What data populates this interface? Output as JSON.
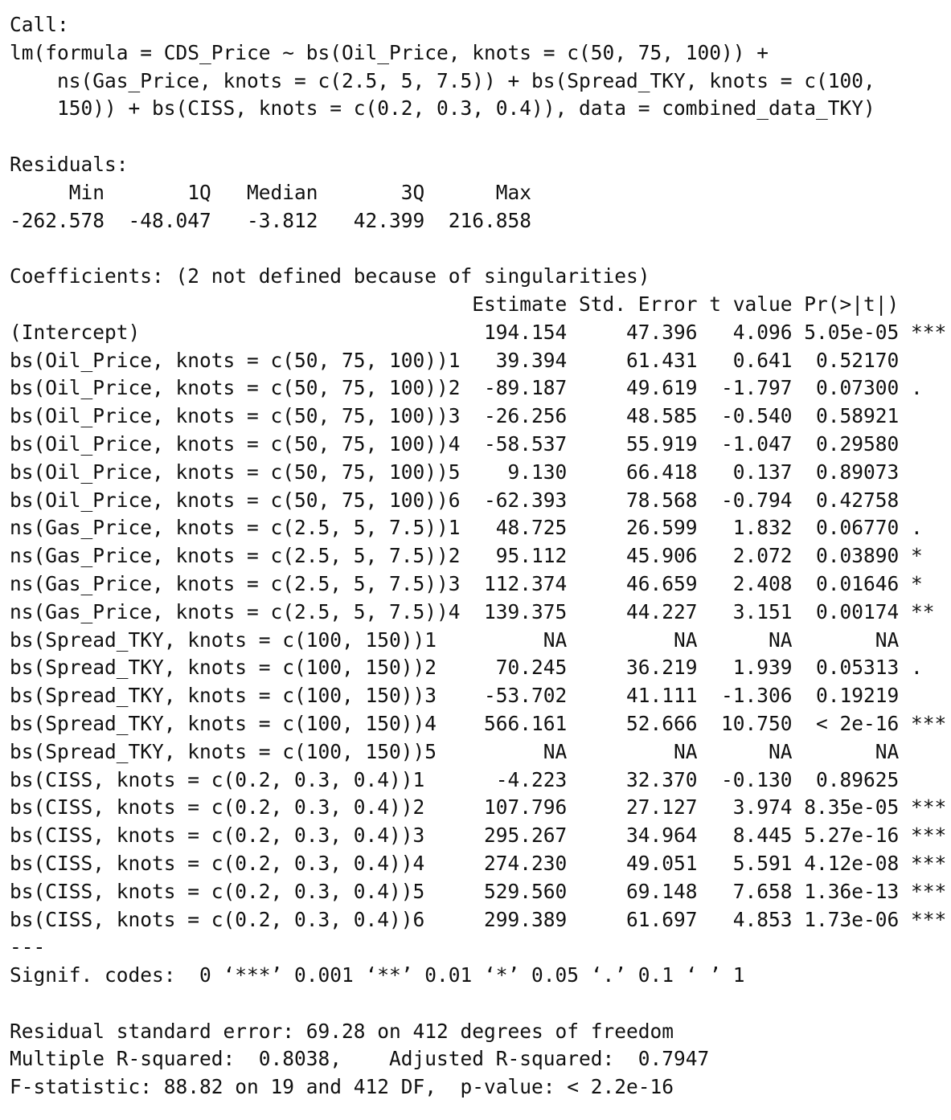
{
  "call": {
    "label": "Call:",
    "lines": [
      "lm(formula = CDS_Price ~ bs(Oil_Price, knots = c(50, 75, 100)) + ",
      "    ns(Gas_Price, knots = c(2.5, 5, 7.5)) + bs(Spread_TKY, knots = c(100, ",
      "    150)) + bs(CISS, knots = c(0.2, 0.3, 0.4)), data = combined_data_TKY)"
    ]
  },
  "residuals": {
    "label": "Residuals:",
    "header": "     Min       1Q   Median       3Q      Max ",
    "values": "-262.578  -48.047   -3.812   42.399  216.858 "
  },
  "coefficients": {
    "label": "Coefficients: (2 not defined because of singularities)",
    "header": "                                       Estimate Std. Error t value Pr(>|t|)    ",
    "rows": [
      "(Intercept)                             194.154     47.396   4.096 5.05e-05 ***",
      "bs(Oil_Price, knots = c(50, 75, 100))1   39.394     61.431   0.641  0.52170    ",
      "bs(Oil_Price, knots = c(50, 75, 100))2  -89.187     49.619  -1.797  0.07300 .  ",
      "bs(Oil_Price, knots = c(50, 75, 100))3  -26.256     48.585  -0.540  0.58921    ",
      "bs(Oil_Price, knots = c(50, 75, 100))4  -58.537     55.919  -1.047  0.29580    ",
      "bs(Oil_Price, knots = c(50, 75, 100))5    9.130     66.418   0.137  0.89073    ",
      "bs(Oil_Price, knots = c(50, 75, 100))6  -62.393     78.568  -0.794  0.42758    ",
      "ns(Gas_Price, knots = c(2.5, 5, 7.5))1   48.725     26.599   1.832  0.06770 .  ",
      "ns(Gas_Price, knots = c(2.5, 5, 7.5))2   95.112     45.906   2.072  0.03890 *  ",
      "ns(Gas_Price, knots = c(2.5, 5, 7.5))3  112.374     46.659   2.408  0.01646 *  ",
      "ns(Gas_Price, knots = c(2.5, 5, 7.5))4  139.375     44.227   3.151  0.00174 ** ",
      "bs(Spread_TKY, knots = c(100, 150))1         NA         NA      NA       NA    ",
      "bs(Spread_TKY, knots = c(100, 150))2     70.245     36.219   1.939  0.05313 .  ",
      "bs(Spread_TKY, knots = c(100, 150))3    -53.702     41.111  -1.306  0.19219    ",
      "bs(Spread_TKY, knots = c(100, 150))4    566.161     52.666  10.750  < 2e-16 ***",
      "bs(Spread_TKY, knots = c(100, 150))5         NA         NA      NA       NA    ",
      "bs(CISS, knots = c(0.2, 0.3, 0.4))1      -4.223     32.370  -0.130  0.89625    ",
      "bs(CISS, knots = c(0.2, 0.3, 0.4))2     107.796     27.127   3.974 8.35e-05 ***",
      "bs(CISS, knots = c(0.2, 0.3, 0.4))3     295.267     34.964   8.445 5.27e-16 ***",
      "bs(CISS, knots = c(0.2, 0.3, 0.4))4     274.230     49.051   5.591 4.12e-08 ***",
      "bs(CISS, knots = c(0.2, 0.3, 0.4))5     529.560     69.148   7.658 1.36e-13 ***",
      "bs(CISS, knots = c(0.2, 0.3, 0.4))6     299.389     61.697   4.853 1.73e-06 ***"
    ],
    "separator": "---",
    "signif_codes": "Signif. codes:  0 ‘***’ 0.001 ‘**’ 0.01 ‘*’ 0.05 ‘.’ 0.1 ‘ ’ 1"
  },
  "summary": {
    "residual_se": "Residual standard error: 69.28 on 412 degrees of freedom",
    "r_squared": "Multiple R-squared:  0.8038,    Adjusted R-squared:  0.7947 ",
    "f_statistic": "F-statistic: 88.82 on 19 and 412 DF,  p-value: < 2.2e-16"
  }
}
